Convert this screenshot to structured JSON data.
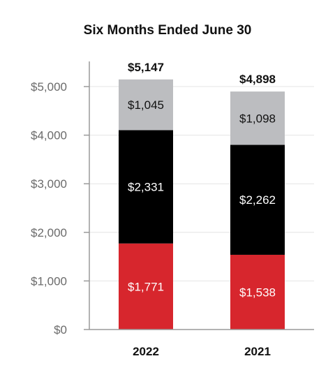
{
  "chart_data": {
    "type": "bar",
    "stacked": true,
    "title": "Six Months Ended June 30",
    "categories": [
      "2022",
      "2021"
    ],
    "series": [
      {
        "values": [
          1771,
          1538
        ],
        "labels": [
          "$1,771",
          "$1,538"
        ],
        "color": "#d7262d",
        "label_color": "#ffffff"
      },
      {
        "values": [
          2331,
          2262
        ],
        "labels": [
          "$2,331",
          "$2,262"
        ],
        "color": "#000000",
        "label_color": "#ffffff"
      },
      {
        "values": [
          1045,
          1098
        ],
        "labels": [
          "$1,045",
          "$1,098"
        ],
        "color": "#bcbdc0",
        "label_color": "#111111"
      }
    ],
    "totals": [
      "$5,147",
      "$4,898"
    ],
    "ylim": [
      0,
      5000
    ],
    "yticks": [
      0,
      1000,
      2000,
      3000,
      4000,
      5000
    ],
    "ytick_labels": [
      "$0",
      "$1,000",
      "$2,000",
      "$3,000",
      "$4,000",
      "$5,000"
    ],
    "grid": true,
    "xlabel": "",
    "ylabel": ""
  }
}
